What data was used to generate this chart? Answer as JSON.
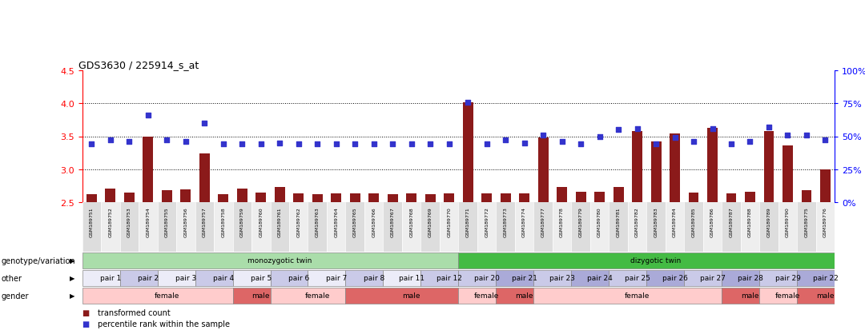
{
  "title": "GDS3630 / 225914_s_at",
  "samples": [
    "GSM189751",
    "GSM189752",
    "GSM189753",
    "GSM189754",
    "GSM189755",
    "GSM189756",
    "GSM189757",
    "GSM189758",
    "GSM189759",
    "GSM189760",
    "GSM189761",
    "GSM189762",
    "GSM189763",
    "GSM189764",
    "GSM189765",
    "GSM189766",
    "GSM189767",
    "GSM189768",
    "GSM189769",
    "GSM189770",
    "GSM189771",
    "GSM189772",
    "GSM189773",
    "GSM189774",
    "GSM189777",
    "GSM189778",
    "GSM189779",
    "GSM189780",
    "GSM189781",
    "GSM189782",
    "GSM189783",
    "GSM189784",
    "GSM189785",
    "GSM189786",
    "GSM189787",
    "GSM189788",
    "GSM189789",
    "GSM189790",
    "GSM189775",
    "GSM189776"
  ],
  "bar_values": [
    2.62,
    2.71,
    2.64,
    3.5,
    2.68,
    2.7,
    3.24,
    2.62,
    2.71,
    2.65,
    2.73,
    2.63,
    2.62,
    2.63,
    2.63,
    2.63,
    2.62,
    2.63,
    2.62,
    2.63,
    4.02,
    2.63,
    2.63,
    2.63,
    3.48,
    2.73,
    2.66,
    2.66,
    2.73,
    3.58,
    3.42,
    3.54,
    2.65,
    3.63,
    2.63,
    2.66,
    3.58,
    3.36,
    2.68,
    3.0
  ],
  "dot_values": [
    3.38,
    3.45,
    3.42,
    3.82,
    3.45,
    3.42,
    3.7,
    3.38,
    3.38,
    3.38,
    3.4,
    3.38,
    3.38,
    3.38,
    3.38,
    3.38,
    3.38,
    3.38,
    3.38,
    3.38,
    4.02,
    3.38,
    3.45,
    3.4,
    3.52,
    3.42,
    3.38,
    3.5,
    3.6,
    3.62,
    3.38,
    3.48,
    3.42,
    3.62,
    3.38,
    3.42,
    3.64,
    3.52,
    3.52,
    3.45
  ],
  "ylim": [
    2.5,
    4.5
  ],
  "yticks": [
    2.5,
    3.0,
    3.5,
    4.0,
    4.5
  ],
  "right_yticks": [
    0,
    25,
    50,
    75,
    100
  ],
  "right_ytick_labels": [
    "0%",
    "25%",
    "50%",
    "75%",
    "100%"
  ],
  "bar_color": "#8B1A1A",
  "dot_color": "#3333CC",
  "bar_bottom": 2.5,
  "genotype_groups": [
    {
      "label": "monozygotic twin",
      "start": 0,
      "end": 20,
      "color": "#AADDAA"
    },
    {
      "label": "dizygotic twin",
      "start": 20,
      "end": 40,
      "color": "#44BB44"
    }
  ],
  "pair_groups": [
    {
      "label": "pair 1",
      "start": 0,
      "end": 2,
      "color": "#ECECF8"
    },
    {
      "label": "pair 2",
      "start": 2,
      "end": 4,
      "color": "#CACAE8"
    },
    {
      "label": "pair 3",
      "start": 4,
      "end": 6,
      "color": "#ECECF8"
    },
    {
      "label": "pair 4",
      "start": 6,
      "end": 8,
      "color": "#CACAE8"
    },
    {
      "label": "pair 5",
      "start": 8,
      "end": 10,
      "color": "#ECECF8"
    },
    {
      "label": "pair 6",
      "start": 10,
      "end": 12,
      "color": "#CACAE8"
    },
    {
      "label": "pair 7",
      "start": 12,
      "end": 14,
      "color": "#ECECF8"
    },
    {
      "label": "pair 8",
      "start": 14,
      "end": 16,
      "color": "#CACAE8"
    },
    {
      "label": "pair 11",
      "start": 16,
      "end": 18,
      "color": "#ECECF8"
    },
    {
      "label": "pair 12",
      "start": 18,
      "end": 20,
      "color": "#CACAE8"
    },
    {
      "label": "pair 20",
      "start": 20,
      "end": 22,
      "color": "#CACAE8"
    },
    {
      "label": "pair 21",
      "start": 22,
      "end": 24,
      "color": "#AAAAD8"
    },
    {
      "label": "pair 23",
      "start": 24,
      "end": 26,
      "color": "#CACAE8"
    },
    {
      "label": "pair 24",
      "start": 26,
      "end": 28,
      "color": "#AAAAD8"
    },
    {
      "label": "pair 25",
      "start": 28,
      "end": 30,
      "color": "#CACAE8"
    },
    {
      "label": "pair 26",
      "start": 30,
      "end": 32,
      "color": "#AAAAD8"
    },
    {
      "label": "pair 27",
      "start": 32,
      "end": 34,
      "color": "#CACAE8"
    },
    {
      "label": "pair 28",
      "start": 34,
      "end": 36,
      "color": "#AAAAD8"
    },
    {
      "label": "pair 29",
      "start": 36,
      "end": 38,
      "color": "#CACAE8"
    },
    {
      "label": "pair 22",
      "start": 38,
      "end": 40,
      "color": "#AAAAD8"
    }
  ],
  "gender_groups": [
    {
      "label": "female",
      "start": 0,
      "end": 8,
      "color": "#FFCCCC"
    },
    {
      "label": "male",
      "start": 8,
      "end": 10,
      "color": "#DD6666"
    },
    {
      "label": "female",
      "start": 10,
      "end": 14,
      "color": "#FFCCCC"
    },
    {
      "label": "male",
      "start": 14,
      "end": 20,
      "color": "#DD6666"
    },
    {
      "label": "female",
      "start": 20,
      "end": 22,
      "color": "#FFCCCC"
    },
    {
      "label": "male",
      "start": 22,
      "end": 24,
      "color": "#DD6666"
    },
    {
      "label": "female",
      "start": 24,
      "end": 34,
      "color": "#FFCCCC"
    },
    {
      "label": "male",
      "start": 34,
      "end": 36,
      "color": "#DD6666"
    },
    {
      "label": "female",
      "start": 36,
      "end": 38,
      "color": "#FFCCCC"
    },
    {
      "label": "male",
      "start": 38,
      "end": 40,
      "color": "#DD6666"
    }
  ],
  "legend_items": [
    {
      "label": "transformed count",
      "color": "#8B1A1A"
    },
    {
      "label": "percentile rank within the sample",
      "color": "#3333CC"
    }
  ]
}
